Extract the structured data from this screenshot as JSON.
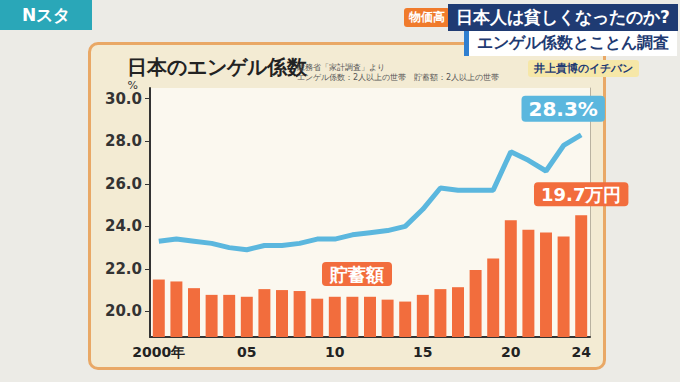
{
  "header": {
    "program": "Nスタ",
    "tag": "物価高",
    "headline": "日本人は貧しくなったのか?",
    "subheadline": "エンゲル係数とことん調査",
    "corner": "井上貴博のイチバン"
  },
  "chart_data": {
    "type": "bar",
    "title": "日本のエンゲル係数",
    "subtitle": "総務省「家計調査」より",
    "note": "エンゲル係数：2人以上の世帯　貯蓄額：2人以上の世帯",
    "y_label": "%",
    "categories": [
      "2000年",
      null,
      null,
      null,
      null,
      "05",
      null,
      null,
      null,
      null,
      "10",
      null,
      null,
      null,
      null,
      "15",
      null,
      null,
      null,
      null,
      "20",
      null,
      null,
      null,
      "24"
    ],
    "series": [
      {
        "name": "エンゲル係数",
        "type": "line",
        "color": "#5bb7de",
        "values": [
          23.3,
          23.4,
          23.3,
          23.2,
          23.0,
          22.9,
          23.1,
          23.1,
          23.2,
          23.4,
          23.4,
          23.6,
          23.7,
          23.8,
          24.0,
          24.8,
          25.8,
          25.7,
          25.7,
          25.7,
          27.5,
          27.1,
          26.6,
          27.8,
          28.3
        ]
      },
      {
        "name": "貯蓄額",
        "type": "bar",
        "color": "#f26d3d",
        "axis": "y2",
        "values": [
          13.0,
          12.8,
          12.1,
          11.4,
          11.4,
          11.2,
          12.0,
          11.9,
          11.8,
          11.0,
          11.2,
          11.2,
          11.2,
          10.9,
          10.7,
          11.4,
          12.0,
          12.2,
          14.0,
          15.2,
          19.2,
          18.2,
          17.9,
          17.5,
          19.7
        ]
      }
    ],
    "annotations": [
      {
        "text": "28.3%",
        "series": "エンゲル係数",
        "x": "24"
      },
      {
        "text": "19.7万円",
        "series": "貯蓄額",
        "x": "24"
      }
    ],
    "ylim": [
      18.8,
      30.5
    ],
    "yticks": [
      {
        "value": 20,
        "label": "20.0"
      },
      {
        "value": 22,
        "label": "22.0"
      },
      {
        "value": 24,
        "label": "24.0"
      },
      {
        "value": 26,
        "label": "26.0"
      },
      {
        "value": 28,
        "label": "28.0"
      },
      {
        "value": 30,
        "label": "30.0"
      }
    ],
    "y2lim": [
      7,
      33
    ],
    "grid": false
  }
}
